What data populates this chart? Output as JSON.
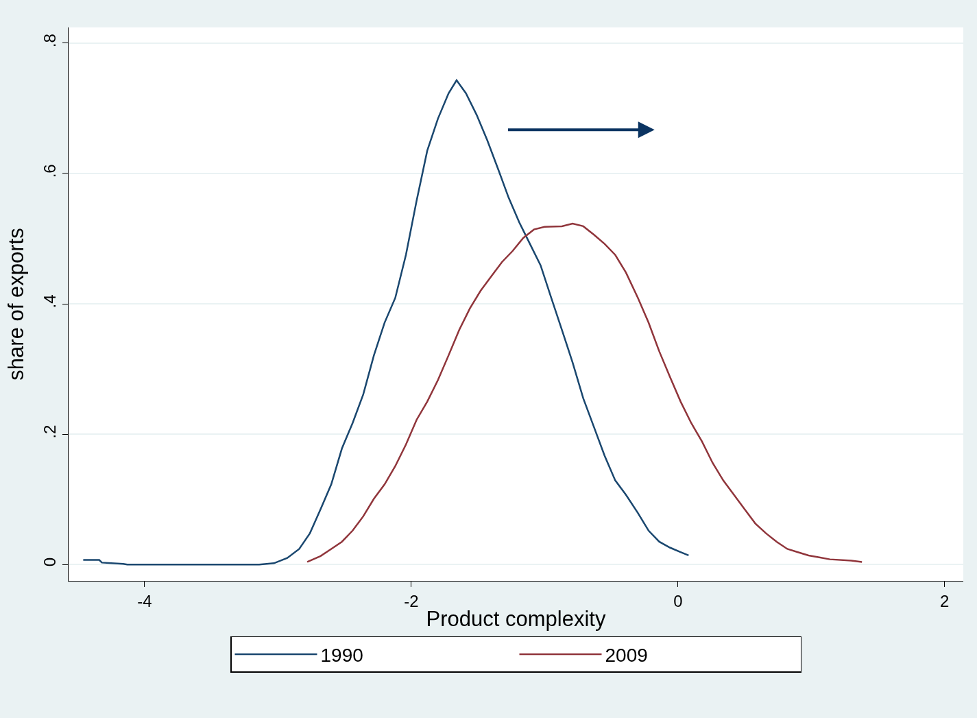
{
  "chart_data": {
    "type": "line",
    "xlabel": "Product complexity",
    "ylabel": "share of exports",
    "xlim": [
      -4.57,
      2.14
    ],
    "ylim": [
      -0.025,
      0.824
    ],
    "xticks": [
      -4,
      -2,
      0,
      2
    ],
    "yticks": [
      {
        "value": 0,
        "label": "0"
      },
      {
        "value": 0.2,
        "label": ".2"
      },
      {
        "value": 0.4,
        "label": ".4"
      },
      {
        "value": 0.6,
        "label": ".6"
      },
      {
        "value": 0.8,
        "label": ".8"
      }
    ],
    "grid": "y",
    "legend": "bottom",
    "marker": "none",
    "line_style": "solid",
    "series": [
      {
        "name": "1990",
        "color": "#1a476f",
        "x": [
          -4.46,
          -4.34,
          -4.32,
          -4.16,
          -4.13,
          -3.14,
          -3.03,
          -2.93,
          -2.84,
          -2.76,
          -2.68,
          -2.6,
          -2.52,
          -2.44,
          -2.36,
          -2.28,
          -2.2,
          -2.12,
          -2.04,
          -1.96,
          -1.88,
          -1.8,
          -1.72,
          -1.66,
          -1.59,
          -1.51,
          -1.43,
          -1.34,
          -1.27,
          -1.19,
          -1.11,
          -1.03,
          -0.95,
          -0.87,
          -0.79,
          -0.71,
          -0.63,
          -0.55,
          -0.47,
          -0.39,
          -0.3,
          -0.22,
          -0.14,
          -0.06,
          0.02,
          0.08
        ],
        "values": [
          0.007,
          0.007,
          0.003,
          0.001,
          0,
          0,
          0.002,
          0.01,
          0.024,
          0.048,
          0.085,
          0.123,
          0.178,
          0.217,
          0.261,
          0.321,
          0.371,
          0.409,
          0.475,
          0.558,
          0.635,
          0.684,
          0.723,
          0.743,
          0.723,
          0.69,
          0.651,
          0.602,
          0.563,
          0.525,
          0.492,
          0.459,
          0.409,
          0.36,
          0.31,
          0.255,
          0.211,
          0.167,
          0.129,
          0.107,
          0.079,
          0.052,
          0.035,
          0.026,
          0.019,
          0.014
        ]
      },
      {
        "name": "2009",
        "color": "#90353b",
        "x": [
          -2.78,
          -2.68,
          -2.6,
          -2.52,
          -2.44,
          -2.36,
          -2.28,
          -2.2,
          -2.12,
          -2.04,
          -1.96,
          -1.88,
          -1.8,
          -1.72,
          -1.64,
          -1.56,
          -1.48,
          -1.4,
          -1.32,
          -1.24,
          -1.16,
          -1.08,
          -1.0,
          -0.87,
          -0.79,
          -0.71,
          -0.63,
          -0.55,
          -0.47,
          -0.39,
          -0.3,
          -0.22,
          -0.14,
          -0.06,
          0.02,
          0.1,
          0.18,
          0.26,
          0.34,
          0.42,
          0.5,
          0.58,
          0.66,
          0.74,
          0.82,
          0.9,
          0.98,
          1.06,
          1.14,
          1.3,
          1.38
        ],
        "values": [
          0.004,
          0.013,
          0.024,
          0.035,
          0.052,
          0.074,
          0.101,
          0.123,
          0.151,
          0.184,
          0.222,
          0.25,
          0.283,
          0.321,
          0.36,
          0.393,
          0.42,
          0.442,
          0.464,
          0.481,
          0.501,
          0.514,
          0.518,
          0.519,
          0.523,
          0.519,
          0.506,
          0.492,
          0.475,
          0.448,
          0.409,
          0.371,
          0.327,
          0.288,
          0.25,
          0.217,
          0.189,
          0.156,
          0.129,
          0.107,
          0.085,
          0.063,
          0.048,
          0.035,
          0.024,
          0.019,
          0.014,
          0.011,
          0.008,
          0.006,
          0.004
        ]
      }
    ]
  }
}
